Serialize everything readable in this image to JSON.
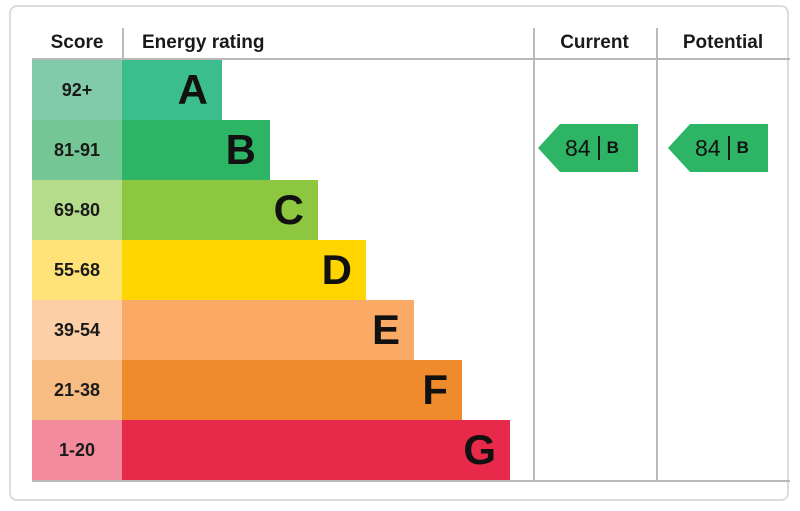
{
  "header": {
    "score": "Score",
    "rating": "Energy rating",
    "current": "Current",
    "potential": "Potential"
  },
  "bands": [
    {
      "score": "92+",
      "letter": "A",
      "bar_color": "#3bbd8d",
      "score_color": "#82cbaa"
    },
    {
      "score": "81-91",
      "letter": "B",
      "bar_color": "#2db464",
      "score_color": "#74c795"
    },
    {
      "score": "69-80",
      "letter": "C",
      "bar_color": "#8dc63f",
      "score_color": "#b5dc8a"
    },
    {
      "score": "55-68",
      "letter": "D",
      "bar_color": "#ffd500",
      "score_color": "#ffe378"
    },
    {
      "score": "39-54",
      "letter": "E",
      "bar_color": "#fbaa65",
      "score_color": "#fccfa6"
    },
    {
      "score": "21-38",
      "letter": "F",
      "bar_color": "#ef8b2d",
      "score_color": "#f6bc82"
    },
    {
      "score": "1-20",
      "letter": "G",
      "bar_color": "#e72a49",
      "score_color": "#f28b9c"
    }
  ],
  "current": {
    "value": "84",
    "divider": "|",
    "rating": "B",
    "arrow_color": "#2db464"
  },
  "potential": {
    "value": "84",
    "divider": "|",
    "rating": "B",
    "arrow_color": "#2db464"
  },
  "chart_data": {
    "type": "bar",
    "title": "Energy rating",
    "categories": [
      "A",
      "B",
      "C",
      "D",
      "E",
      "F",
      "G"
    ],
    "score_ranges": [
      "92+",
      "81-91",
      "69-80",
      "55-68",
      "39-54",
      "21-38",
      "1-20"
    ],
    "bar_lengths_relative": [
      0.24,
      0.36,
      0.48,
      0.6,
      0.71,
      0.83,
      0.94
    ],
    "colors": [
      "#3bbd8d",
      "#2db464",
      "#8dc63f",
      "#ffd500",
      "#fbaa65",
      "#ef8b2d",
      "#e72a49"
    ],
    "legend_position": "none",
    "grid": false,
    "current": {
      "score": 84,
      "rating": "B"
    },
    "potential": {
      "score": 84,
      "rating": "B"
    }
  }
}
